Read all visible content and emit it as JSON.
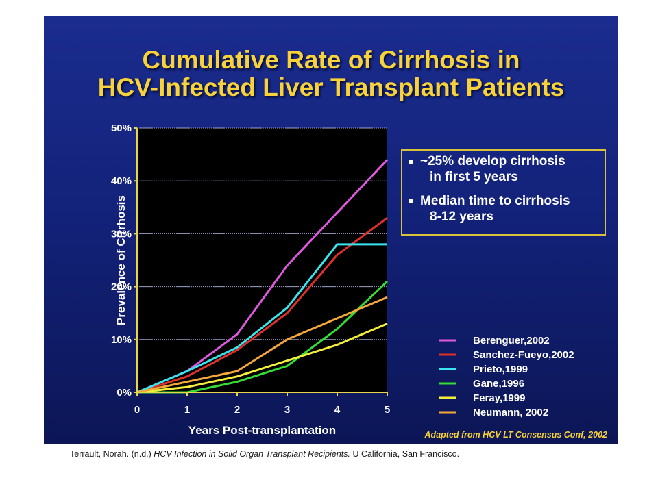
{
  "slide": {
    "title_line1": "Cumulative Rate of Cirrhosis in",
    "title_line2": "HCV-Infected Liver Transplant Patients",
    "callout": {
      "bullet1_line1": "~25% develop cirrhosis",
      "bullet1_line2": "in first 5 years",
      "bullet2_line1": "Median time to cirrhosis",
      "bullet2_line2": "8-12 years"
    },
    "source_note": "Adapted from HCV LT Consensus Conf, 2002"
  },
  "citation": {
    "author": "Terrault, Norah. (n.d.) ",
    "title": "HCV Infection in Solid Organ Transplant Recipients.",
    "publisher": " U California, San Francisco."
  },
  "colors": {
    "slide_background": "#15257f",
    "title": "#f7d23a",
    "plot_background": "#000000",
    "axis": "#e8d44d"
  },
  "chart_data": {
    "type": "line",
    "title": "",
    "xlabel": "Years Post-transplantation",
    "ylabel": "Prevalence of Cirrhosis",
    "x": [
      0,
      1,
      2,
      3,
      4,
      5
    ],
    "x_tick_labels": [
      "0",
      "1",
      "2",
      "3",
      "4",
      "5"
    ],
    "xlim": [
      0,
      5
    ],
    "ylim": [
      0,
      50
    ],
    "y_ticks": [
      0,
      10,
      20,
      30,
      40,
      50
    ],
    "y_tick_labels": [
      "0%",
      "10%",
      "20%",
      "30%",
      "40%",
      "50%"
    ],
    "grid": "horizontal",
    "legend_position": "bottom-right",
    "series": [
      {
        "name": "Berenguer,2002",
        "color": "#e05ae0",
        "values": [
          0,
          4,
          11,
          24,
          34,
          44
        ]
      },
      {
        "name": "Sanchez-Fueyo,2002",
        "color": "#e0302a",
        "values": [
          0,
          3,
          8,
          15,
          26,
          33
        ]
      },
      {
        "name": "Prieto,1999",
        "color": "#3ae6ee",
        "values": [
          0,
          4,
          8.5,
          16,
          28,
          28
        ]
      },
      {
        "name": "Gane,1996",
        "color": "#33dd33",
        "values": [
          0,
          0,
          2,
          5,
          12,
          21
        ]
      },
      {
        "name": "Feray,1999",
        "color": "#f2ee3a",
        "values": [
          0,
          1,
          3,
          6,
          9,
          13
        ]
      },
      {
        "name": "Neumann, 2002",
        "color": "#f5a83a",
        "values": [
          0,
          2,
          4,
          10,
          14,
          18
        ]
      }
    ]
  }
}
